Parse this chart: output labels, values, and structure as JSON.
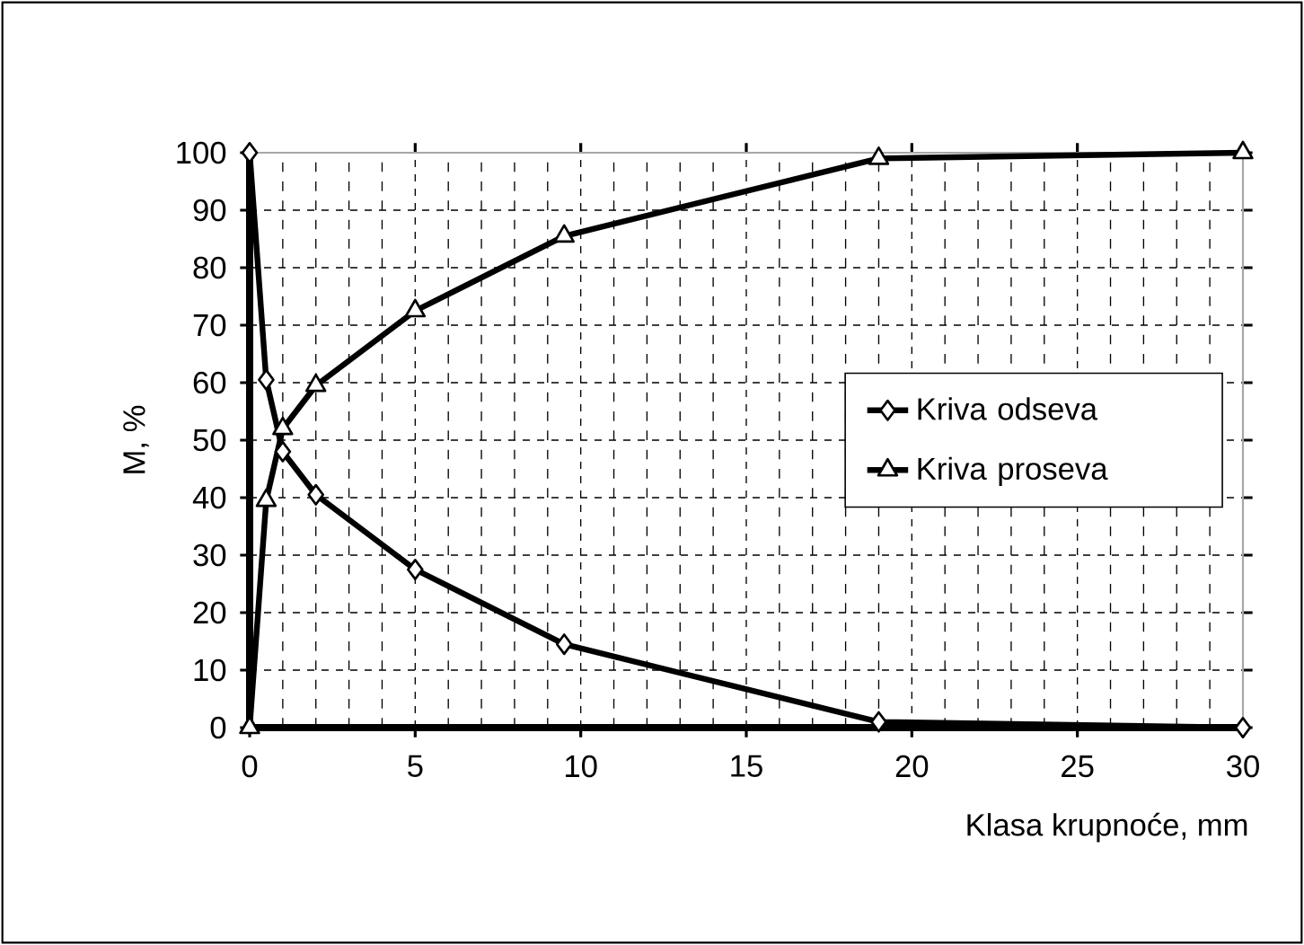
{
  "chart_data": {
    "type": "line",
    "xlabel": "Klasa krupnoće, mm",
    "ylabel": "M, %",
    "xlim": [
      0,
      30
    ],
    "ylim": [
      0,
      100
    ],
    "xticks": [
      0,
      5,
      10,
      15,
      20,
      25,
      30
    ],
    "yticks": [
      0,
      10,
      20,
      30,
      40,
      50,
      60,
      70,
      80,
      90,
      100
    ],
    "grid": true,
    "legend": "right",
    "line_style": "solid",
    "x": [
      0,
      0.5,
      1,
      2,
      5,
      9.5,
      19,
      30
    ],
    "series": [
      {
        "name": "Kriva odseva",
        "color": "#000000",
        "marker": "diamond",
        "values": [
          100,
          60.5,
          48,
          40.5,
          27.5,
          14.5,
          1,
          0
        ]
      },
      {
        "name": "Kriva proseva",
        "color": "#000000",
        "marker": "triangle",
        "values": [
          0,
          39.5,
          52,
          59.5,
          72.5,
          85.5,
          99,
          100
        ]
      }
    ]
  }
}
